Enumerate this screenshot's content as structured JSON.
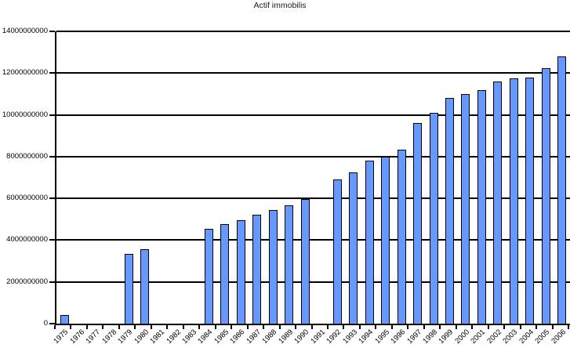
{
  "chart_data": {
    "type": "bar",
    "title": "Actif immobilis",
    "categories": [
      "1975",
      "1976",
      "1977",
      "1978",
      "1979",
      "1980",
      "1981",
      "1982",
      "1983",
      "1984",
      "1985",
      "1986",
      "1987",
      "1988",
      "1989",
      "1990",
      "1991",
      "1992",
      "1993",
      "1994",
      "1995",
      "1996",
      "1997",
      "1998",
      "1999",
      "2000",
      "2001",
      "2002",
      "2003",
      "2004",
      "2005",
      "2006"
    ],
    "values": [
      420000000,
      0,
      0,
      0,
      3350000000,
      3550000000,
      0,
      0,
      0,
      4550000000,
      4750000000,
      4950000000,
      5200000000,
      5450000000,
      5650000000,
      5950000000,
      0,
      6900000000,
      7250000000,
      7800000000,
      8000000000,
      8350000000,
      9600000000,
      10100000000,
      10800000000,
      11000000000,
      11200000000,
      11600000000,
      11750000000,
      11800000000,
      12250000000,
      12800000000
    ],
    "xlabel": "",
    "ylabel": "",
    "ylim": [
      0,
      14000000000
    ],
    "y_tick_interval": 2000000000,
    "y_tick_labels": [
      "0",
      "2000000000",
      "4000000000",
      "6000000000",
      "8000000000",
      "10000000000",
      "12000000000",
      "14000000000"
    ],
    "x_tick_label_rotation_deg": 45,
    "grid": "horizontal",
    "legend_position": "none",
    "bar_fill_color": "#6699FF",
    "bar_border_color": "#000000",
    "gridline_color": "#000000",
    "axis_color": "#000000",
    "background_color": "#FFFFFF"
  }
}
